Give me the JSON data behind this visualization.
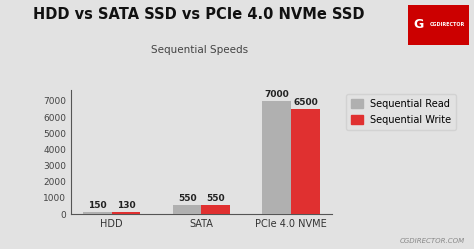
{
  "title": "HDD vs SATA SSD vs PCIe 4.0 NVMe SSD",
  "subtitle": "Sequential Speeds",
  "categories": [
    "HDD",
    "SATA",
    "PCIe 4.0 NVME"
  ],
  "read_values": [
    150,
    550,
    7000
  ],
  "write_values": [
    130,
    550,
    6500
  ],
  "bar_color_read": "#b0b0b0",
  "bar_color_write": "#e03030",
  "background_color": "#e2e2e2",
  "title_color": "#111111",
  "subtitle_color": "#444444",
  "legend_read": "Sequential Read",
  "legend_write": "Sequential Write",
  "ylim": [
    0,
    7700
  ],
  "yticks": [
    0,
    1000,
    2000,
    3000,
    4000,
    5000,
    6000,
    7000
  ],
  "bar_width": 0.32,
  "label_fontsize": 6.5,
  "title_fontsize": 10.5,
  "subtitle_fontsize": 7.5,
  "axis_label_fontsize": 7,
  "ytick_fontsize": 6.5,
  "legend_fontsize": 7,
  "watermark": "CGDIRECTOR.COM"
}
